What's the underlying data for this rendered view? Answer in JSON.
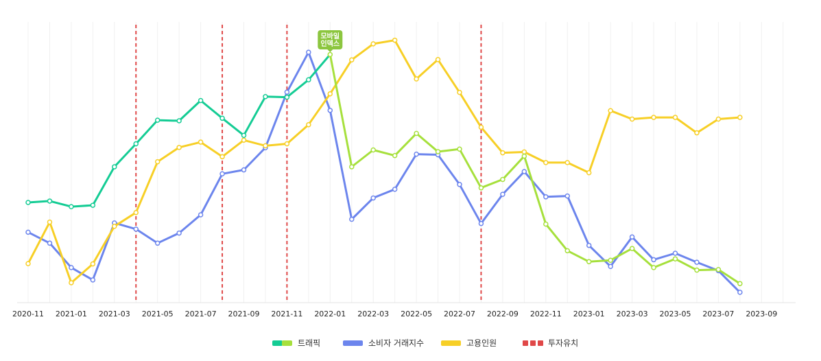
{
  "chart_data": {
    "type": "line",
    "x": [
      "2020-11",
      "2020-12",
      "2021-01",
      "2021-02",
      "2021-03",
      "2021-04",
      "2021-05",
      "2021-06",
      "2021-07",
      "2021-08",
      "2021-09",
      "2021-10",
      "2021-11",
      "2021-12",
      "2022-01",
      "2022-02",
      "2022-03",
      "2022-04",
      "2022-05",
      "2022-06",
      "2022-07",
      "2022-08",
      "2022-09",
      "2022-10",
      "2022-11",
      "2022-12",
      "2023-01",
      "2023-02",
      "2023-03",
      "2023-04",
      "2023-05",
      "2023-06",
      "2023-07",
      "2023-08"
    ],
    "tick_labels": [
      "2020-11",
      "2021-01",
      "2021-03",
      "2021-05",
      "2021-07",
      "2021-09",
      "2021-11",
      "2022-01",
      "2022-03",
      "2022-05",
      "2022-07",
      "2022-09",
      "2022-11",
      "2023-01",
      "2023-03",
      "2023-05",
      "2023-07",
      "2023-09"
    ],
    "ylim": [
      0,
      100
    ],
    "grid": "vertical",
    "legend_position": "bottom",
    "series": [
      {
        "name": "트래픽",
        "colors": [
          "#14cc94",
          "#a6e03c"
        ],
        "switch_at": "2022-01",
        "values": [
          35.7,
          36.2,
          34.2,
          34.7,
          48.4,
          56.6,
          65.0,
          64.8,
          72.0,
          65.7,
          59.6,
          73.4,
          73.2,
          79.4,
          88.4,
          48.4,
          54.4,
          52.4,
          60.3,
          53.8,
          54.7,
          40.9,
          43.9,
          52.2,
          28.0,
          18.5,
          14.6,
          15.1,
          19.3,
          12.5,
          15.6,
          11.6,
          11.8,
          6.8
        ]
      },
      {
        "name": "소비자 거래지수",
        "color": "#6c85ed",
        "values": [
          25.1,
          21.2,
          12.5,
          8.1,
          28.4,
          26.2,
          21.2,
          24.8,
          31.3,
          45.9,
          47.3,
          55.2,
          75.0,
          89.2,
          68.5,
          29.7,
          37.3,
          40.4,
          52.9,
          52.7,
          42.1,
          28.2,
          38.6,
          46.7,
          37.7,
          38.0,
          20.4,
          12.9,
          23.4,
          15.3,
          17.6,
          14.4,
          11.4,
          3.7
        ]
      },
      {
        "name": "고용인원",
        "color": "#f7cf26",
        "values": [
          13.9,
          28.7,
          7.1,
          13.8,
          27.2,
          32.1,
          50.2,
          55.3,
          57.2,
          52.0,
          57.9,
          55.9,
          56.6,
          63.4,
          74.4,
          86.5,
          92.2,
          93.5,
          79.7,
          86.6,
          74.9,
          62.5,
          53.4,
          53.7,
          49.9,
          49.9,
          46.3,
          68.4,
          65.4,
          66.0,
          66.0,
          60.5,
          65.4,
          66.0
        ]
      },
      {
        "name": "투자유치",
        "color": "#e04848",
        "dashed": true,
        "events": [
          "2021-04",
          "2021-08",
          "2021-11",
          "2022-08"
        ]
      }
    ],
    "annotations": [
      {
        "x": "2022-01",
        "series": "트래픽",
        "lines": [
          "모바일",
          "인덱스"
        ],
        "color": "#8cc63f"
      }
    ]
  }
}
